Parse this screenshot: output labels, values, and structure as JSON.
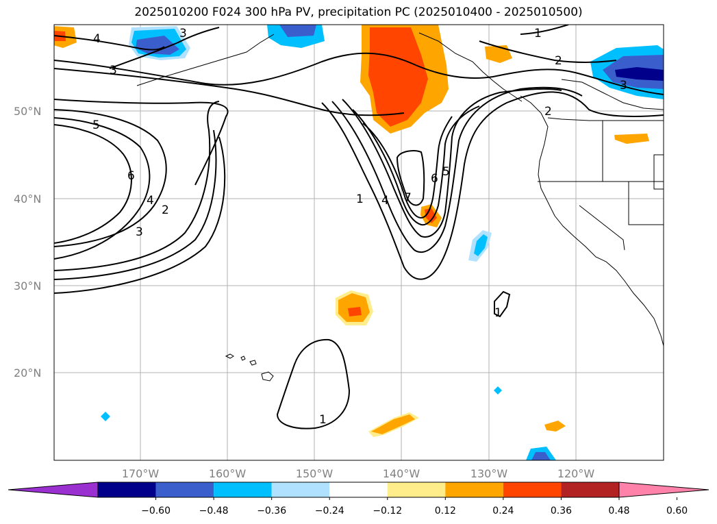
{
  "title": "2025010200 F024 300 hPa PV, precipitation PC (2025010400 - 2025010500)",
  "lat_labels": [
    "50°N",
    "40°N",
    "30°N",
    "20°N"
  ],
  "lon_labels": [
    "170°W",
    "160°W",
    "150°W",
    "140°W",
    "130°W",
    "120°W"
  ],
  "contour_labels": [
    "4",
    "3",
    "3",
    "1",
    "2",
    "2",
    "5",
    "6",
    "4",
    "2",
    "3",
    "1",
    "4",
    "7",
    "6",
    "5",
    "3",
    "1",
    "1"
  ],
  "colorbar": {
    "ticks": [
      "−0.60",
      "−0.48",
      "−0.36",
      "−0.24",
      "−0.12",
      "0.12",
      "0.24",
      "0.36",
      "0.48",
      "0.60"
    ],
    "colors": [
      "#9b30d0",
      "#00008b",
      "#3a5fcd",
      "#00bfff",
      "#b0e2ff",
      "#ffffff",
      "#ffec8b",
      "#ffa500",
      "#ff4500",
      "#b22222",
      "#ff82ab"
    ]
  },
  "palette": {
    "neg_strong": "#3a5fcd",
    "neg_mid": "#00bfff",
    "neg_light": "#b0e2ff",
    "pos_light": "#ffec8b",
    "pos_mid": "#ffa500",
    "pos_strong": "#ff4500"
  }
}
